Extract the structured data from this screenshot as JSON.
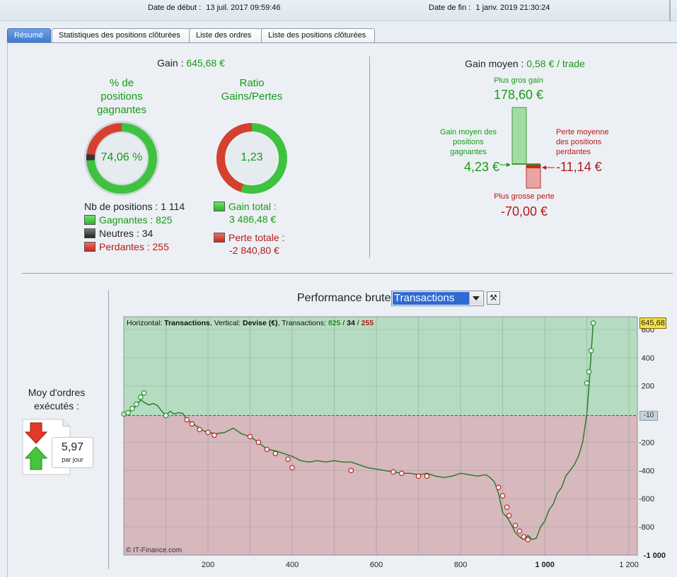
{
  "header": {
    "start_label": "Date de début :",
    "start_value": "13 juil. 2017 09:59:46",
    "end_label": "Date de fin :",
    "end_value": "1 janv. 2019 21:30:24"
  },
  "tabs": [
    {
      "label": "Résumé",
      "active": true
    },
    {
      "label": "Statistiques des positions clôturées",
      "active": false
    },
    {
      "label": "Liste des ordres",
      "active": false
    },
    {
      "label": "Liste des positions clôturées",
      "active": false
    }
  ],
  "summary": {
    "gain_label": "Gain :",
    "gain_value": "645,68 €",
    "win_pct_title_1": "% de",
    "win_pct_title_2": "positions",
    "win_pct_title_3": "gagnantes",
    "win_pct_value": "74,06 %",
    "win_pct_fraction": 0.7406,
    "ratio_title_1": "Ratio",
    "ratio_title_2": "Gains/Pertes",
    "ratio_value": "1,23",
    "nb_positions_label": "Nb de positions :",
    "nb_positions_value": "1 114",
    "winners_label": "Gagnantes :",
    "winners_value": "825",
    "neutral_label": "Neutres :",
    "neutral_value": "34",
    "losers_label": "Perdantes :",
    "losers_value": "255",
    "gain_total_label": "Gain total :",
    "gain_total_value": "3 486,48 €",
    "loss_total_label": "Perte totale :",
    "loss_total_value": "-2 840,80 €"
  },
  "avg": {
    "title_label": "Gain moyen :",
    "title_value": "0,58 € / trade",
    "biggest_gain_label": "Plus gros gain",
    "biggest_gain_value": "178,60 €",
    "avg_win_label_1": "Gain moyen des",
    "avg_win_label_2": "positions",
    "avg_win_label_3": "gagnantes",
    "avg_win_value": "4,23 €",
    "avg_loss_label_1": "Perte moyenne",
    "avg_loss_label_2": "des positions",
    "avg_loss_label_3": "perdantes",
    "avg_loss_value": "-11,14 €",
    "biggest_loss_label": "Plus grosse perte",
    "biggest_loss_value": "-70,00 €"
  },
  "orders": {
    "title_1": "Moy d'ordres",
    "title_2": "exécutés :",
    "value": "5,97",
    "unit": "par jour"
  },
  "performance": {
    "title": "Performance brute",
    "selector_value": "Transactions"
  },
  "colors": {
    "gain": "#169a16",
    "loss": "#b31b1b",
    "zone_positive": "#b5dcc0",
    "zone_negative": "#d6b8bd"
  },
  "chart_data": {
    "type": "line",
    "legend_parts": [
      "Horizontal: ",
      "Transactions",
      ", Vertical: ",
      "Devise (€)",
      ", Transactions: ",
      "825",
      " / ",
      "34",
      " / ",
      "255"
    ],
    "watermark": "© IT-Finance.com",
    "xlim": [
      0,
      1220
    ],
    "ylim": [
      -1000,
      690
    ],
    "x_ticks": [
      {
        "v": 200,
        "label": "200"
      },
      {
        "v": 400,
        "label": "400"
      },
      {
        "v": 600,
        "label": "600"
      },
      {
        "v": 800,
        "label": "800"
      },
      {
        "v": 1000,
        "label": "1 000"
      },
      {
        "v": 1200,
        "label": "1 200"
      }
    ],
    "y_ticks": [
      {
        "v": 600,
        "label": "600"
      },
      {
        "v": 400,
        "label": "400"
      },
      {
        "v": 200,
        "label": "200"
      },
      {
        "v": -200,
        "label": "-200"
      },
      {
        "v": -400,
        "label": "-400"
      },
      {
        "v": -600,
        "label": "-600"
      },
      {
        "v": -800,
        "label": "-800"
      },
      {
        "v": -1000,
        "label": "-1 000"
      }
    ],
    "last_value_label": "645,68",
    "last_value": 645.68,
    "baseline_label": "-10",
    "baseline": -10,
    "series": [
      {
        "x": [
          0,
          10,
          20,
          30,
          40,
          50,
          60,
          70,
          80,
          90,
          100,
          110,
          120,
          130,
          140,
          150,
          160,
          170,
          180,
          190,
          200,
          220,
          240,
          260,
          280,
          300,
          320,
          340,
          360,
          380,
          400,
          420,
          440,
          460,
          480,
          500,
          520,
          540,
          560,
          580,
          600,
          620,
          640,
          660,
          680,
          700,
          720,
          740,
          760,
          780,
          800,
          820,
          840,
          860,
          870,
          880,
          890,
          900,
          910,
          920,
          930,
          940,
          950,
          960,
          970,
          980,
          990,
          1000,
          1010,
          1020,
          1030,
          1040,
          1050,
          1060,
          1070,
          1080,
          1090,
          1100,
          1105,
          1110,
          1115
        ],
        "y": [
          0,
          10,
          30,
          60,
          100,
          80,
          65,
          75,
          60,
          20,
          -10,
          20,
          0,
          10,
          5,
          -40,
          -60,
          -80,
          -100,
          -120,
          -130,
          -140,
          -130,
          -100,
          -140,
          -160,
          -200,
          -250,
          -260,
          -280,
          -300,
          -330,
          -340,
          -330,
          -340,
          -330,
          -340,
          -340,
          -360,
          -380,
          -390,
          -400,
          -410,
          -420,
          -420,
          -430,
          -420,
          -440,
          -450,
          -440,
          -420,
          -430,
          -440,
          -430,
          -450,
          -480,
          -560,
          -700,
          -730,
          -780,
          -840,
          -870,
          -890,
          -860,
          -890,
          -880,
          -800,
          -760,
          -680,
          -640,
          -560,
          -520,
          -440,
          -400,
          -360,
          -300,
          -200,
          0,
          200,
          420,
          645.68
        ]
      }
    ],
    "markers": [
      {
        "x": 0,
        "y": 0
      },
      {
        "x": 10,
        "y": 10
      },
      {
        "x": 20,
        "y": 40
      },
      {
        "x": 30,
        "y": 70
      },
      {
        "x": 40,
        "y": 120
      },
      {
        "x": 48,
        "y": 150
      },
      {
        "x": 100,
        "y": -10
      },
      {
        "x": 150,
        "y": -40
      },
      {
        "x": 162,
        "y": -70
      },
      {
        "x": 180,
        "y": -110
      },
      {
        "x": 200,
        "y": -130
      },
      {
        "x": 215,
        "y": -150
      },
      {
        "x": 300,
        "y": -160
      },
      {
        "x": 320,
        "y": -200
      },
      {
        "x": 340,
        "y": -250
      },
      {
        "x": 360,
        "y": -280
      },
      {
        "x": 390,
        "y": -320
      },
      {
        "x": 400,
        "y": -380
      },
      {
        "x": 540,
        "y": -400
      },
      {
        "x": 640,
        "y": -410
      },
      {
        "x": 660,
        "y": -420
      },
      {
        "x": 700,
        "y": -440
      },
      {
        "x": 720,
        "y": -440
      },
      {
        "x": 890,
        "y": -520
      },
      {
        "x": 900,
        "y": -580
      },
      {
        "x": 910,
        "y": -660
      },
      {
        "x": 915,
        "y": -720
      },
      {
        "x": 930,
        "y": -790
      },
      {
        "x": 940,
        "y": -830
      },
      {
        "x": 950,
        "y": -870
      },
      {
        "x": 960,
        "y": -890
      },
      {
        "x": 1100,
        "y": 220
      },
      {
        "x": 1105,
        "y": 300
      },
      {
        "x": 1110,
        "y": 450
      },
      {
        "x": 1115,
        "y": 645.68
      }
    ]
  }
}
